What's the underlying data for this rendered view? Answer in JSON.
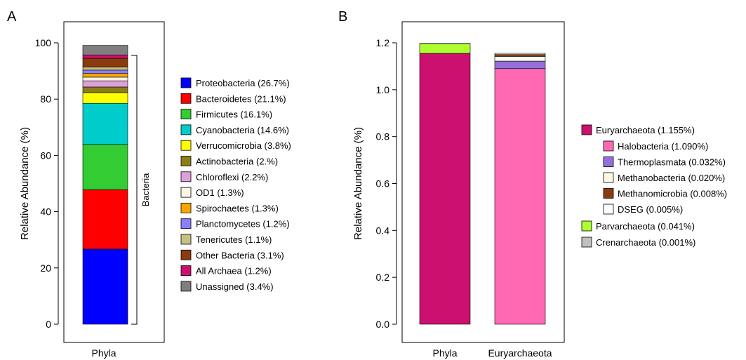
{
  "chart_data": [
    {
      "panel": "A",
      "type": "bar",
      "stacked": true,
      "categories": [
        "Phyla"
      ],
      "ylabel": "Relative Abundance (%)",
      "xlabel": "",
      "ylim": [
        0,
        100
      ],
      "yticks": [
        0,
        20,
        40,
        60,
        80,
        100
      ],
      "bracket_label": "Bacteria",
      "bracket_range": [
        0,
        95.5
      ],
      "series": [
        {
          "name": "Proteobacteria (26.7%)",
          "values": [
            26.7
          ],
          "color": "#0000ff"
        },
        {
          "name": "Bacteroidetes (21.1%)",
          "values": [
            21.1
          ],
          "color": "#ff0000"
        },
        {
          "name": "Firmicutes (16.1%)",
          "values": [
            16.1
          ],
          "color": "#33cc33"
        },
        {
          "name": "Cyanobacteria (14.6%)",
          "values": [
            14.6
          ],
          "color": "#00cccc"
        },
        {
          "name": "Verrucomicrobia (3.8%)",
          "values": [
            3.8
          ],
          "color": "#ffff00"
        },
        {
          "name": "Actinobacteria (2.%)",
          "values": [
            2.0
          ],
          "color": "#8b7d1a"
        },
        {
          "name": "Chloroflexi (2.2%)",
          "values": [
            2.2
          ],
          "color": "#dda0dd"
        },
        {
          "name": "OD1 (1.3%)",
          "values": [
            1.3
          ],
          "color": "#fff5e0"
        },
        {
          "name": "Spirochaetes (1.3%)",
          "values": [
            1.3
          ],
          "color": "#ffa500"
        },
        {
          "name": "Planctomycetes (1.2%)",
          "values": [
            1.2
          ],
          "color": "#8a7fff"
        },
        {
          "name": "Tenericutes (1.1%)",
          "values": [
            1.1
          ],
          "color": "#c8c080"
        },
        {
          "name": "Other Bacteria (3.1%)",
          "values": [
            3.1
          ],
          "color": "#8b3a0f"
        },
        {
          "name": "All Archaea (1.2%)",
          "values": [
            1.2
          ],
          "color": "#cc1070"
        },
        {
          "name": "Unassigned (3.4%)",
          "values": [
            3.4
          ],
          "color": "#7f7f7f"
        }
      ]
    },
    {
      "panel": "B",
      "type": "bar",
      "stacked": true,
      "categories": [
        "Phyla",
        "Euryarchaeota"
      ],
      "ylabel": "Relative Abundance (%)",
      "xlabel": "",
      "ylim": [
        0,
        1.25
      ],
      "yticks": [
        0.0,
        0.2,
        0.4,
        0.6,
        0.8,
        1.0,
        1.2
      ],
      "series": [
        {
          "name": "Euryarchaeota (1.155%)",
          "values": [
            1.155,
            0
          ],
          "color": "#cc1070",
          "indent": false
        },
        {
          "name": "Halobacteria (1.090%)",
          "values": [
            0,
            1.09
          ],
          "color": "#ff69b4",
          "indent": true
        },
        {
          "name": "Thermoplasmata (0.032%)",
          "values": [
            0,
            0.032
          ],
          "color": "#9370db",
          "indent": true
        },
        {
          "name": "Methanobacteria (0.020%)",
          "values": [
            0,
            0.02
          ],
          "color": "#fff8e7",
          "indent": true
        },
        {
          "name": "Methanomicrobia (0.008%)",
          "values": [
            0,
            0.008
          ],
          "color": "#8b3a0f",
          "indent": true
        },
        {
          "name": "DSEG (0.005%)",
          "values": [
            0,
            0.005
          ],
          "color": "#ffffff",
          "indent": true
        },
        {
          "name": "Parvarchaeota (0.041%)",
          "values": [
            0.041,
            0
          ],
          "color": "#adff2f",
          "indent": false
        },
        {
          "name": "Crenarchaeota (0.001%)",
          "values": [
            0.001,
            0
          ],
          "color": "#c0c0c0",
          "indent": false
        }
      ]
    }
  ]
}
